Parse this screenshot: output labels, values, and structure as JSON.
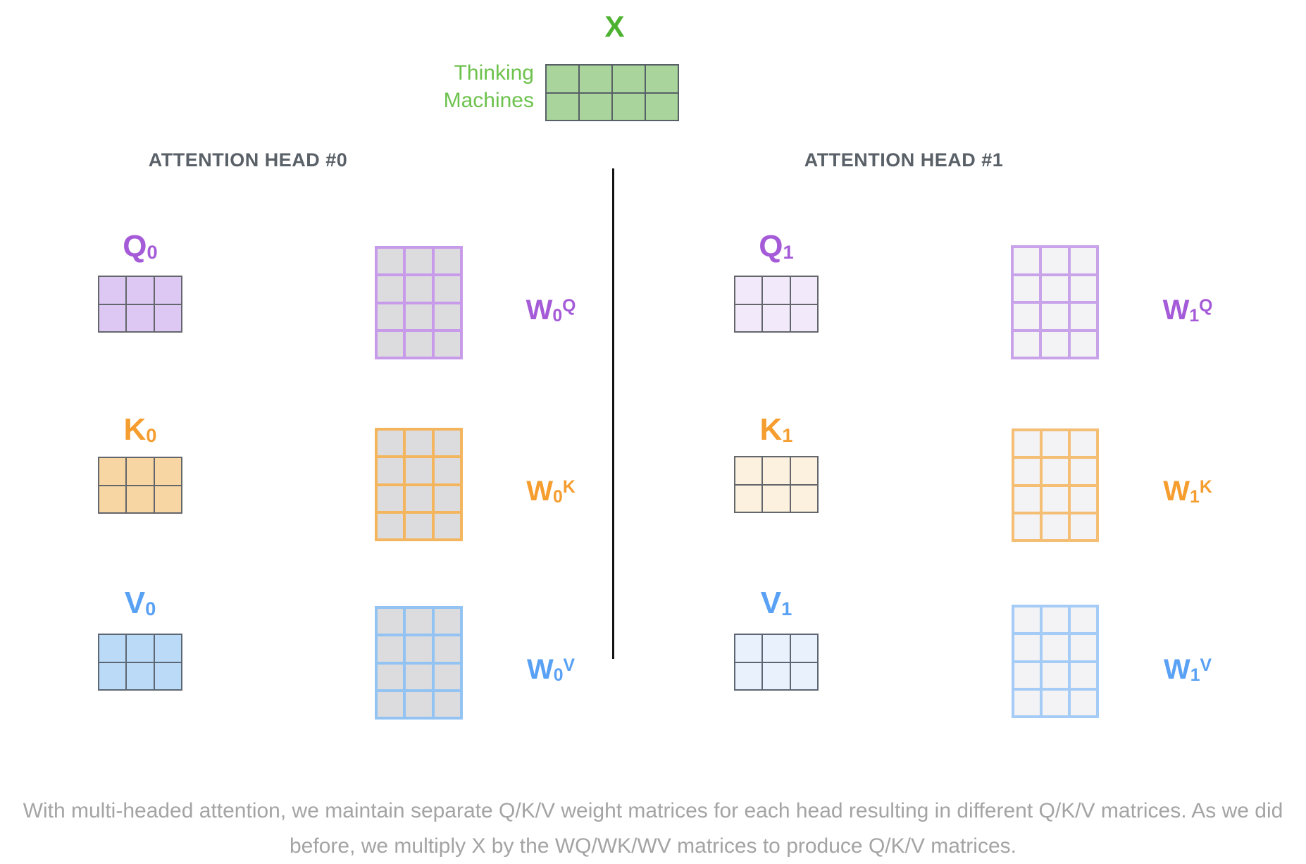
{
  "input_matrix": {
    "title": "X",
    "title_color": "#4db231",
    "row_labels": [
      "Thinking",
      "Machines"
    ],
    "row_label_color": "#6dc24d",
    "grid": {
      "cols": 4,
      "rows": 2,
      "fill": "#a9d49b",
      "border": "#566066",
      "line": 2
    }
  },
  "divider": {
    "color": "#141414"
  },
  "heads": [
    {
      "title": "ATTENTION HEAD #0",
      "title_color": "#596067",
      "qkv": [
        {
          "letter": "Q",
          "index": "0",
          "color": "#a55bd8",
          "grid": {
            "cols": 3,
            "rows": 2,
            "fill": "#ddc8f3",
            "border": "#63666b",
            "line": 2
          }
        },
        {
          "letter": "K",
          "index": "0",
          "color": "#f59d2e",
          "grid": {
            "cols": 3,
            "rows": 2,
            "fill": "#f8d6a4",
            "border": "#63666b",
            "line": 2
          }
        },
        {
          "letter": "V",
          "index": "0",
          "color": "#59a1f4",
          "grid": {
            "cols": 3,
            "rows": 2,
            "fill": "#badaf7",
            "border": "#5d6773",
            "line": 2
          }
        }
      ],
      "weights": [
        {
          "letter": "W",
          "index": "0",
          "sup": "Q",
          "color": "#a55bd8",
          "grid": {
            "cols": 3,
            "rows": 4,
            "fill": "#dcdcdf",
            "border": "#c89bea",
            "line": 4
          }
        },
        {
          "letter": "W",
          "index": "0",
          "sup": "K",
          "color": "#f59d2e",
          "grid": {
            "cols": 3,
            "rows": 4,
            "fill": "#dcdcdf",
            "border": "#f4b55f",
            "line": 4
          }
        },
        {
          "letter": "W",
          "index": "0",
          "sup": "V",
          "color": "#59a1f4",
          "grid": {
            "cols": 3,
            "rows": 4,
            "fill": "#dcdcdf",
            "border": "#92c3f2",
            "line": 4
          }
        }
      ]
    },
    {
      "title": "ATTENTION HEAD #1",
      "title_color": "#596067",
      "qkv": [
        {
          "letter": "Q",
          "index": "1",
          "color": "#a55bd8",
          "grid": {
            "cols": 3,
            "rows": 2,
            "fill": "#f2eafb",
            "border": "#63666b",
            "line": 2
          }
        },
        {
          "letter": "K",
          "index": "1",
          "color": "#f59d2e",
          "grid": {
            "cols": 3,
            "rows": 2,
            "fill": "#fcf1de",
            "border": "#63666b",
            "line": 2
          }
        },
        {
          "letter": "V",
          "index": "1",
          "color": "#59a1f4",
          "grid": {
            "cols": 3,
            "rows": 2,
            "fill": "#e9f1fc",
            "border": "#5d6773",
            "line": 2
          }
        }
      ],
      "weights": [
        {
          "letter": "W",
          "index": "1",
          "sup": "Q",
          "color": "#a55bd8",
          "grid": {
            "cols": 3,
            "rows": 4,
            "fill": "#f3f2f5",
            "border": "#c9a3ea",
            "line": 4
          }
        },
        {
          "letter": "W",
          "index": "1",
          "sup": "K",
          "color": "#f59d2e",
          "grid": {
            "cols": 3,
            "rows": 4,
            "fill": "#f3f2f4",
            "border": "#f4be74",
            "line": 4
          }
        },
        {
          "letter": "W",
          "index": "1",
          "sup": "V",
          "color": "#59a1f4",
          "grid": {
            "cols": 3,
            "rows": 4,
            "fill": "#f3f2f4",
            "border": "#a5ccf6",
            "line": 4
          }
        }
      ]
    }
  ],
  "caption": {
    "line1": "With multi-headed attention, we maintain separate Q/K/V weight matrices for each head resulting in different Q/K/V matrices. As we did",
    "line2": "before, we multiply X by the WQ/WK/WV matrices to produce Q/K/V matrices.",
    "color": "#a4a4a4"
  }
}
